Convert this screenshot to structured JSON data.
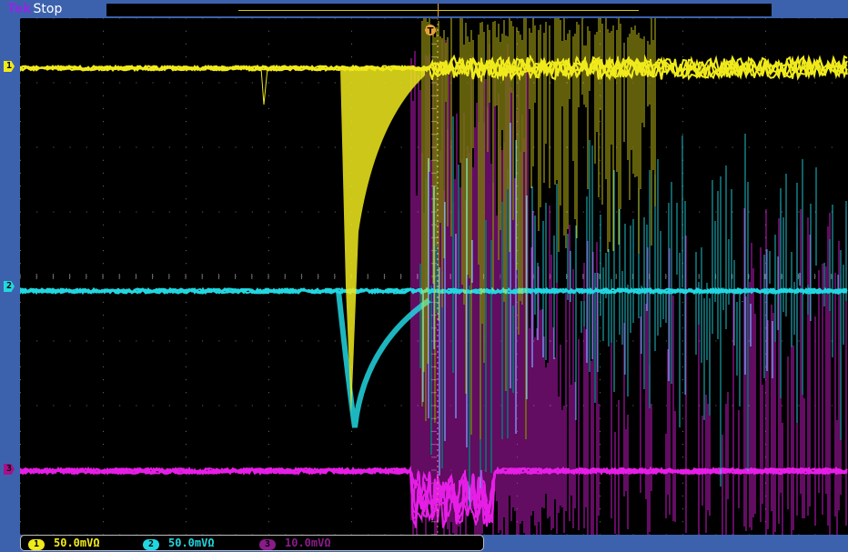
{
  "header": {
    "brand": "Tek",
    "acquisition_state": "Stop"
  },
  "trigger": {
    "marker_label": "T",
    "record_marker": "8"
  },
  "channels": [
    {
      "id": "1",
      "label": "1",
      "scale": "50.0mVΩ",
      "color": "#f0ea1c"
    },
    {
      "id": "2",
      "label": "2",
      "scale": "50.0mVΩ",
      "color": "#22d6e0"
    },
    {
      "id": "3",
      "label": "3",
      "scale": "10.0mVΩ",
      "color": "#e61ee6"
    }
  ],
  "colors": {
    "frame": "#3d62ad",
    "screen": "#000000",
    "trigger": "#e7a23a",
    "grid": "#6f6f6f"
  }
}
